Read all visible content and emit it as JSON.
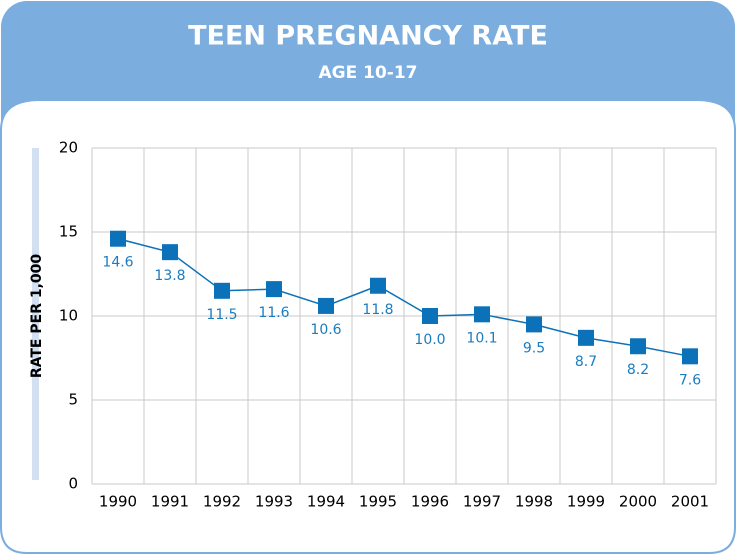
{
  "chart_data": {
    "type": "line",
    "title": "TEEN PREGNANCY RATE",
    "subtitle": "AGE 10-17",
    "y_label": "RATE PER 1,000",
    "categories": [
      "1990",
      "1991",
      "1992",
      "1993",
      "1994",
      "1995",
      "1996",
      "1997",
      "1998",
      "1999",
      "2000",
      "2001"
    ],
    "values": [
      14.6,
      13.8,
      11.5,
      11.6,
      10.6,
      11.8,
      10.0,
      10.1,
      9.5,
      8.7,
      8.2,
      7.6
    ],
    "value_labels": [
      "14.6",
      "13.8",
      "11.5",
      "11.6",
      "10.6",
      "11.8",
      "10.0",
      "10.1",
      "9.5",
      "8.7",
      "8.2",
      "7.6"
    ],
    "color": "#0b72b9",
    "ylim": [
      0,
      20
    ],
    "yticks": [
      0,
      5,
      10,
      15,
      20
    ],
    "grid": true
  }
}
